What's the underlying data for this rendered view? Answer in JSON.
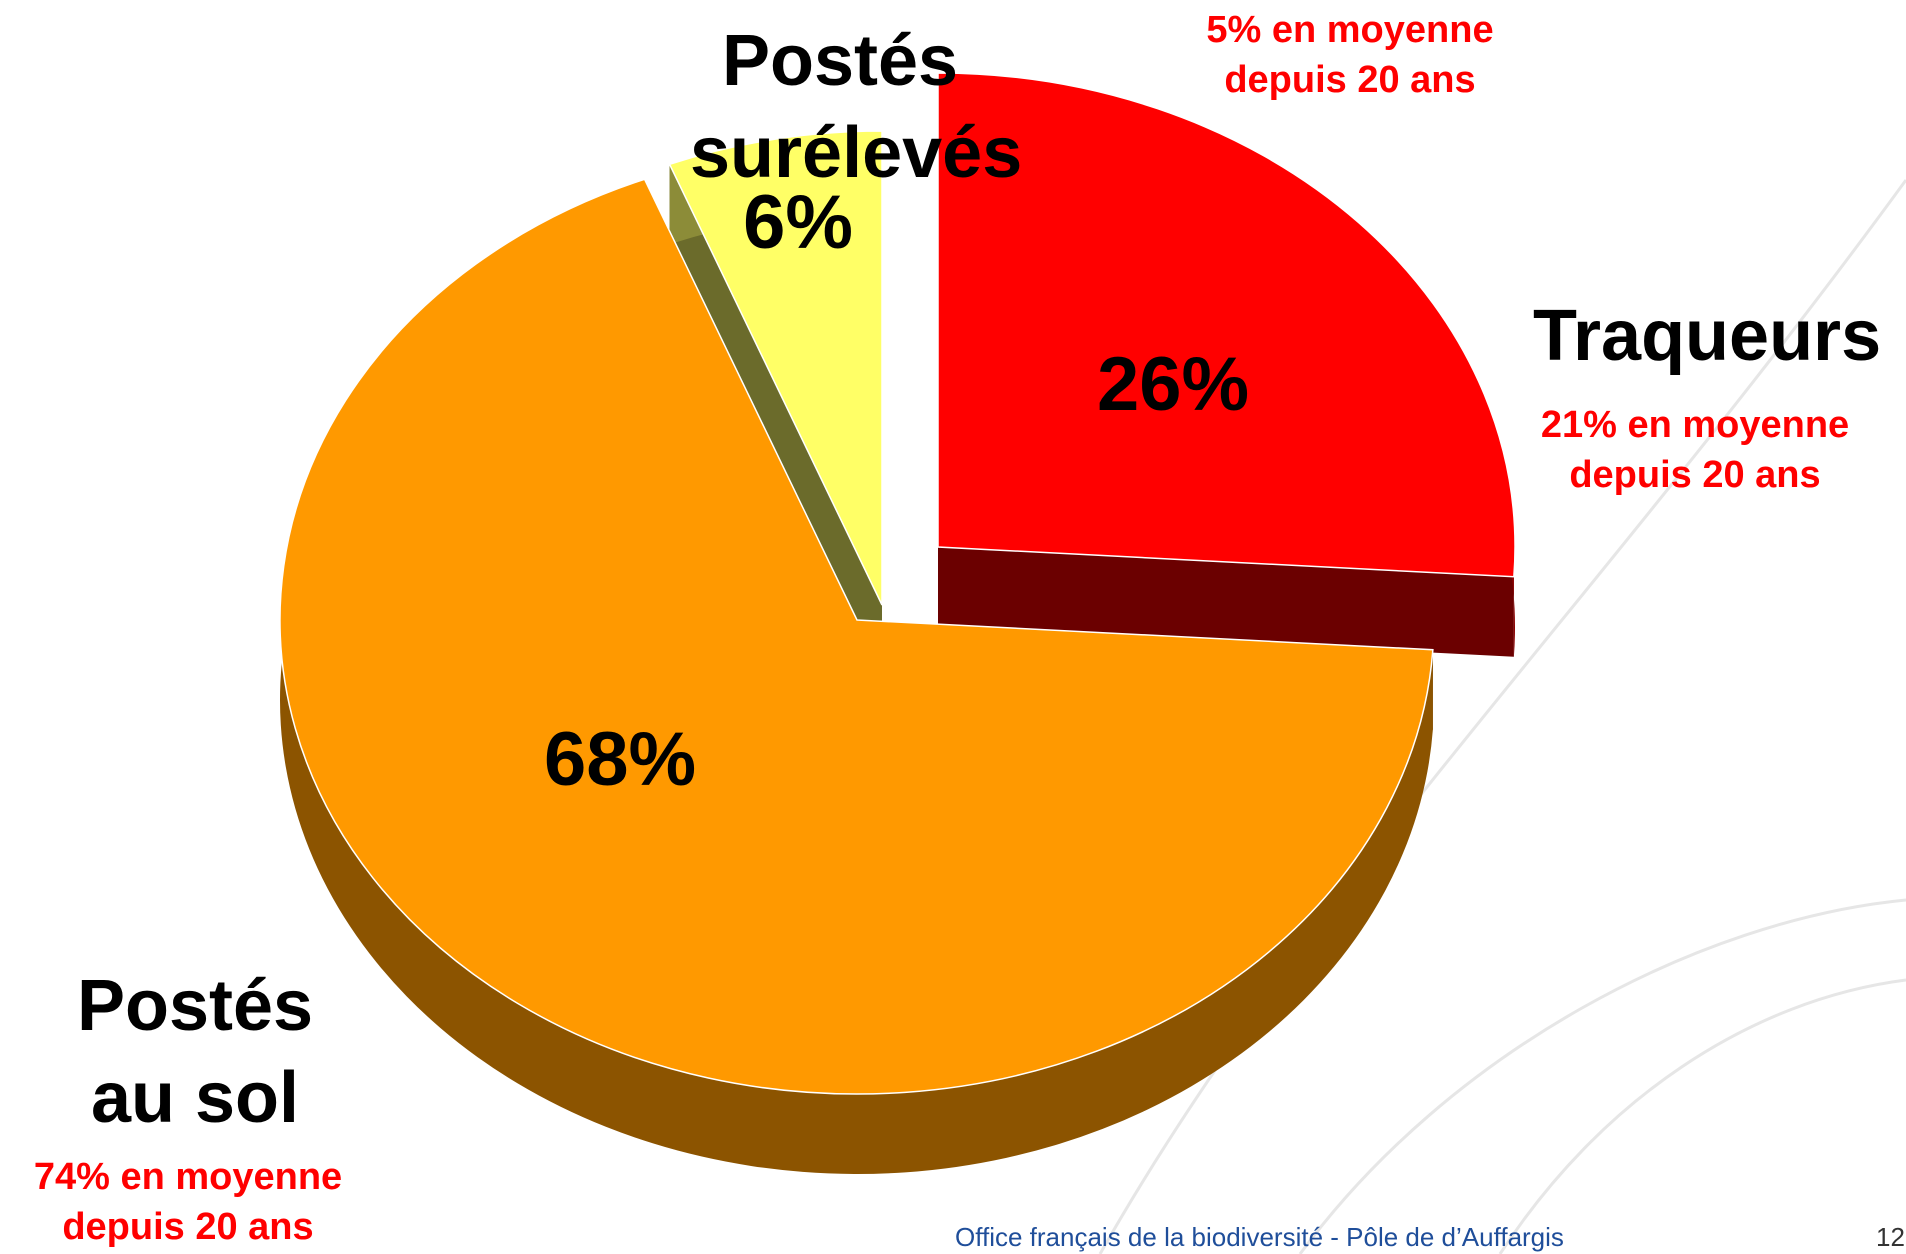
{
  "chart_data": {
    "type": "pie",
    "categories": [
      "Traqueurs",
      "Postés au sol",
      "Postés surélevés"
    ],
    "values": [
      26,
      68,
      6
    ],
    "value_labels": [
      "26%",
      "68%",
      "6%"
    ],
    "colors": [
      "#ff0000",
      "#ff9900",
      "#ffff66"
    ],
    "annotations": [
      "21% en moyenne depuis 20 ans",
      "74% en moyenne depuis 20 ans",
      "5% en moyenne depuis 20 ans"
    ]
  },
  "footer": {
    "text": "Office français de la biodiversité  -  Pôle de d’Auffargis",
    "page": "12"
  }
}
